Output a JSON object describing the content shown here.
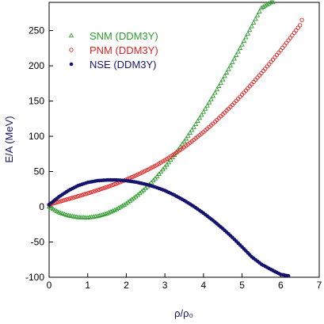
{
  "chart_data": {
    "type": "scatter",
    "xlabel": "ρ/ρ₀",
    "ylabel": "E/A (MeV)",
    "xlim": [
      0,
      7
    ],
    "ylim": [
      -100,
      290
    ],
    "xticks": [
      "0",
      "1",
      "2",
      "3",
      "4",
      "5",
      "6",
      "7"
    ],
    "yticks": [
      "-100",
      "-50",
      "0",
      "50",
      "100",
      "150",
      "200",
      "250"
    ],
    "legend_position": "top-left",
    "grid": false,
    "series": [
      {
        "name": "SNM (DDM3Y)",
        "marker": "triangle-open",
        "color": "#2e9a2e",
        "x": [
          0.0,
          0.25,
          0.5,
          0.75,
          1.0,
          1.25,
          1.5,
          1.75,
          2.0,
          2.25,
          2.5,
          2.75,
          3.0,
          3.25,
          3.5,
          3.75,
          4.0,
          4.25,
          4.5,
          4.75,
          5.0,
          5.25,
          5.5,
          5.75,
          5.8
        ],
        "y": [
          0,
          -8,
          -12.5,
          -15,
          -15.5,
          -13.5,
          -9.5,
          -3.5,
          4.5,
          14.5,
          26,
          40,
          56,
          73.5,
          92.5,
          113,
          134.5,
          157,
          180.5,
          205,
          230,
          256,
          282,
          290,
          290
        ]
      },
      {
        "name": "PNM (DDM3Y)",
        "marker": "circle-open",
        "color": "#e02020",
        "x": [
          0.0,
          0.25,
          0.5,
          0.75,
          1.0,
          1.25,
          1.5,
          1.75,
          2.0,
          2.25,
          2.5,
          2.75,
          3.0,
          3.25,
          3.5,
          3.75,
          4.0,
          4.25,
          4.5,
          4.75,
          5.0,
          5.25,
          5.5,
          5.75,
          6.0,
          6.25,
          6.5,
          6.55
        ],
        "y": [
          3,
          7,
          11,
          15,
          19,
          23.5,
          28,
          33,
          38.5,
          44.5,
          51,
          58,
          66,
          75,
          84.5,
          95,
          106,
          118,
          131,
          144.5,
          159,
          174,
          189.5,
          205.5,
          222,
          239.5,
          257.5,
          265
        ]
      },
      {
        "name": "NSE (DDM3Y)",
        "marker": "circle-filled",
        "color": "#14146e",
        "x": [
          0.0,
          0.25,
          0.5,
          0.75,
          1.0,
          1.25,
          1.5,
          1.75,
          2.0,
          2.25,
          2.5,
          2.75,
          3.0,
          3.25,
          3.5,
          3.75,
          4.0,
          4.25,
          4.5,
          4.75,
          5.0,
          5.25,
          5.5,
          5.75,
          6.0,
          6.2
        ],
        "y": [
          3,
          14,
          23,
          30,
          34.5,
          37,
          38,
          38,
          37,
          35,
          32,
          28,
          23,
          16.5,
          9,
          0.5,
          -9,
          -19.5,
          -31,
          -43.5,
          -57,
          -71,
          -81.5,
          -89,
          -96,
          -98
        ]
      }
    ]
  }
}
